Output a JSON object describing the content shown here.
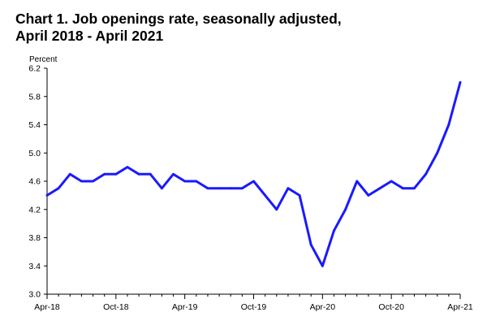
{
  "chart": {
    "title_line1": "Chart 1. Job openings rate, seasonally adjusted,",
    "title_line2": "April 2018 - April 2021"
  },
  "chart_data": {
    "type": "line",
    "title": "Chart 1. Job openings rate, seasonally adjusted, April 2018 - April 2021",
    "xlabel": "",
    "ylabel": "Percent",
    "ylim": [
      3.0,
      6.2
    ],
    "yticks": [
      3.0,
      3.4,
      3.8,
      4.2,
      4.6,
      5.0,
      5.4,
      5.8,
      6.2
    ],
    "ytick_labels": [
      "3.0",
      "3.4",
      "3.8",
      "4.2",
      "4.6",
      "5.0",
      "5.4",
      "5.8",
      "6.2"
    ],
    "xtick_labels": [
      "Apr-18",
      "Oct-18",
      "Apr-19",
      "Oct-19",
      "Apr-20",
      "Oct-20",
      "Apr-21"
    ],
    "xtick_index": [
      0,
      6,
      12,
      18,
      24,
      30,
      36
    ],
    "grid": false,
    "legend": "none",
    "line_color": "#1a1aff",
    "x": [
      "Apr-18",
      "May-18",
      "Jun-18",
      "Jul-18",
      "Aug-18",
      "Sep-18",
      "Oct-18",
      "Nov-18",
      "Dec-18",
      "Jan-19",
      "Feb-19",
      "Mar-19",
      "Apr-19",
      "May-19",
      "Jun-19",
      "Jul-19",
      "Aug-19",
      "Sep-19",
      "Oct-19",
      "Nov-19",
      "Dec-19",
      "Jan-20",
      "Feb-20",
      "Mar-20",
      "Apr-20",
      "May-20",
      "Jun-20",
      "Jul-20",
      "Aug-20",
      "Sep-20",
      "Oct-20",
      "Nov-20",
      "Dec-20",
      "Jan-21",
      "Feb-21",
      "Mar-21",
      "Apr-21"
    ],
    "series": [
      {
        "values": [
          4.4,
          4.5,
          4.7,
          4.6,
          4.6,
          4.7,
          4.7,
          4.8,
          4.7,
          4.7,
          4.5,
          4.7,
          4.6,
          4.6,
          4.5,
          4.5,
          4.5,
          4.5,
          4.6,
          4.4,
          4.2,
          4.5,
          4.4,
          3.7,
          3.4,
          3.9,
          4.2,
          4.6,
          4.4,
          4.5,
          4.6,
          4.5,
          4.5,
          4.7,
          5.0,
          5.4,
          6.0
        ]
      }
    ]
  }
}
